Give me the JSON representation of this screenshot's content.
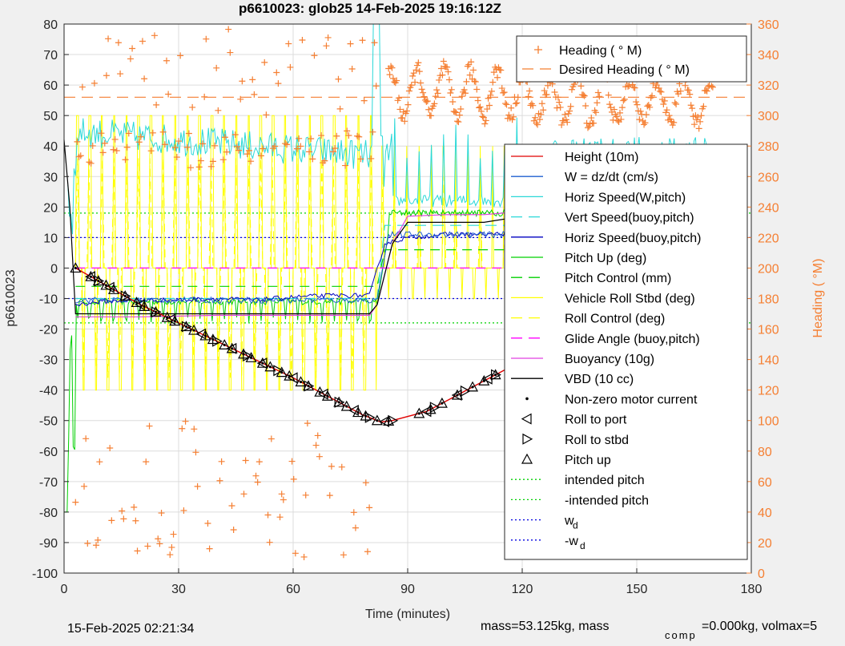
{
  "chart_data": {
    "type": "line",
    "title": "p6610023: glob25 14-Feb-2025 19:16:12Z",
    "xlabel": "Time (minutes)",
    "ylabel_left": "p6610023",
    "ylabel_right": "Heading (  °M)",
    "xlim": [
      0,
      180
    ],
    "ylim_left": [
      -100,
      80
    ],
    "ylim_right": [
      0,
      360
    ],
    "x_ticks": [
      "0",
      "30",
      "60",
      "90",
      "120",
      "150",
      "180"
    ],
    "y_ticks_left": [
      "80",
      "70",
      "60",
      "50",
      "40",
      "30",
      "20",
      "10",
      "0",
      "-10",
      "-20",
      "-30",
      "-40",
      "-50",
      "-60",
      "-70",
      "-80",
      "-90",
      "-100"
    ],
    "y_ticks_right": [
      "360",
      "340",
      "320",
      "300",
      "280",
      "260",
      "240",
      "220",
      "200",
      "180",
      "160",
      "140",
      "120",
      "100",
      "80",
      "60",
      "40",
      "20",
      "0"
    ],
    "grid": true,
    "footer_left": "15-Feb-2025 02:21:34",
    "footer_right_a": "mass=53.125kg, mass",
    "footer_right_sub": "comp",
    "footer_right_b": "=0.000kg, volmax=5",
    "legend_top": [
      {
        "label": "Heading (   ° M)",
        "color": "#f57f32",
        "style": "plus"
      },
      {
        "label": "Desired Heading (    ° M)",
        "color": "#f57f32",
        "style": "dash"
      }
    ],
    "legend_main": [
      {
        "label": "Height (10m)",
        "color": "#e00000",
        "style": "solid"
      },
      {
        "label": "W = dz/dt (cm/s)",
        "color": "#1f5fd0",
        "style": "solid"
      },
      {
        "label": "Horiz Speed(W,pitch)",
        "color": "#2ad8d8",
        "style": "solid"
      },
      {
        "label": "Vert Speed(buoy,pitch)",
        "color": "#2ad8d8",
        "style": "dash"
      },
      {
        "label": "Horiz Speed(buoy,pitch)",
        "color": "#0000c0",
        "style": "solid"
      },
      {
        "label": "Pitch Up (deg)",
        "color": "#00d000",
        "style": "solid"
      },
      {
        "label": "Pitch Control (mm)",
        "color": "#00d000",
        "style": "dash"
      },
      {
        "label": "Vehicle Roll Stbd (deg)",
        "color": "#ffff00",
        "style": "solid"
      },
      {
        "label": "Roll Control (deg)",
        "color": "#ffff00",
        "style": "dash"
      },
      {
        "label": "Glide Angle (buoy,pitch)",
        "color": "#ff00ff",
        "style": "dash"
      },
      {
        "label": "Buoyancy (10g)",
        "color": "#e040e0",
        "style": "solid"
      },
      {
        "label": "VBD (10 cc)",
        "color": "#000000",
        "style": "solid"
      },
      {
        "label": "Non-zero motor current",
        "color": "#000000",
        "style": "dot"
      },
      {
        "label": "Roll to port",
        "color": "#000000",
        "style": "tri-left"
      },
      {
        "label": "Roll to stbd",
        "color": "#000000",
        "style": "tri-right"
      },
      {
        "label": "Pitch up",
        "color": "#000000",
        "style": "tri-up"
      },
      {
        "label": "intended pitch",
        "color": "#00d000",
        "style": "dotted"
      },
      {
        "label": "-intended pitch",
        "color": "#00d000",
        "style": "dotted"
      },
      {
        "label": "w",
        "sub": "d",
        "color": "#0000e0",
        "style": "dotted"
      },
      {
        "label": "-w",
        "sub": "d",
        "color": "#0000e0",
        "style": "dotted"
      }
    ],
    "series": {
      "height": {
        "x": [
          3,
          20,
          40,
          60,
          78,
          83,
          86,
          95,
          110,
          125,
          140,
          155,
          168
        ],
        "y": [
          0,
          -12,
          -24,
          -36,
          -48,
          -50.5,
          -50,
          -47,
          -37,
          -27,
          -18,
          -8,
          0
        ]
      },
      "vbd": {
        "x": [
          0,
          1.5,
          3,
          10,
          20,
          40,
          60,
          80,
          82,
          86,
          90,
          100,
          110,
          120,
          130,
          140,
          150,
          160,
          170
        ],
        "y": [
          42,
          20,
          -15,
          -15,
          -15,
          -15,
          -15,
          -15,
          -12,
          8,
          15,
          15,
          15,
          17,
          18,
          24,
          25,
          26,
          26.5
        ]
      },
      "buoyancy": {
        "x": [
          3,
          20,
          40,
          60,
          80,
          82,
          86,
          90,
          100,
          110,
          120,
          130,
          140,
          150,
          160,
          170
        ],
        "y": [
          -16,
          -16,
          -15.5,
          -15.5,
          -15.5,
          -12,
          8,
          17,
          17.5,
          17.5,
          18.5,
          19.5,
          21,
          23,
          25.5,
          26.5
        ]
      },
      "horiz_speed_buoy": {
        "x": [
          3,
          10,
          20,
          30,
          40,
          50,
          60,
          70,
          80,
          84,
          90,
          100,
          110,
          120,
          130,
          140,
          150,
          160,
          168
        ],
        "y": [
          -12,
          -11,
          -10.5,
          -10.5,
          -10,
          -10.5,
          -9.5,
          -9,
          -9,
          8,
          10,
          11,
          11,
          11.5,
          10,
          9.5,
          10.5,
          11,
          10
        ]
      },
      "pitch_control": {
        "x": [
          3,
          82,
          84,
          170
        ],
        "y": [
          -6,
          -6,
          6,
          6
        ]
      },
      "intended_pitch": {
        "x": [
          0,
          180
        ],
        "y": [
          18,
          18
        ]
      },
      "neg_intended_pitch": {
        "x": [
          0,
          180
        ],
        "y": [
          -18,
          -18
        ]
      },
      "w_d": {
        "x": [
          0,
          180
        ],
        "y": [
          10,
          10
        ]
      },
      "neg_w_d": {
        "x": [
          0,
          180
        ],
        "y": [
          -10,
          -10
        ]
      },
      "vert_speed_dash": {
        "x": [
          3,
          82,
          84,
          170
        ],
        "y": [
          -10,
          -10,
          14,
          14
        ]
      },
      "desired_heading_deg": {
        "x": [
          0,
          180
        ],
        "y": [
          312,
          312
        ]
      },
      "glide_angle": {
        "x": [
          3,
          170
        ],
        "y": [
          0,
          0
        ]
      }
    },
    "markers": {
      "pitch_up_x": [
        3,
        7,
        9,
        11,
        13,
        16,
        19,
        21,
        24,
        27,
        29,
        32,
        34,
        37,
        39,
        42,
        44,
        47,
        49,
        52,
        54,
        57,
        59,
        62,
        64,
        67,
        69,
        72,
        74,
        77,
        79,
        82,
        85,
        93,
        96,
        99,
        103,
        107,
        110,
        113,
        117,
        121,
        124,
        128,
        132,
        135,
        139,
        143,
        146,
        149,
        152,
        155,
        158,
        161,
        165,
        168
      ],
      "roll_to_port_x": [
        7,
        12,
        20,
        28,
        36,
        44,
        52,
        60,
        68,
        76,
        84,
        95,
        103,
        111,
        119,
        128,
        137,
        145,
        152,
        160,
        168
      ],
      "roll_to_stbd_x": [
        9,
        16,
        24,
        32,
        40,
        48,
        56,
        64,
        72,
        80,
        86,
        97,
        105,
        113,
        121,
        131,
        141,
        149,
        156,
        163
      ]
    }
  }
}
